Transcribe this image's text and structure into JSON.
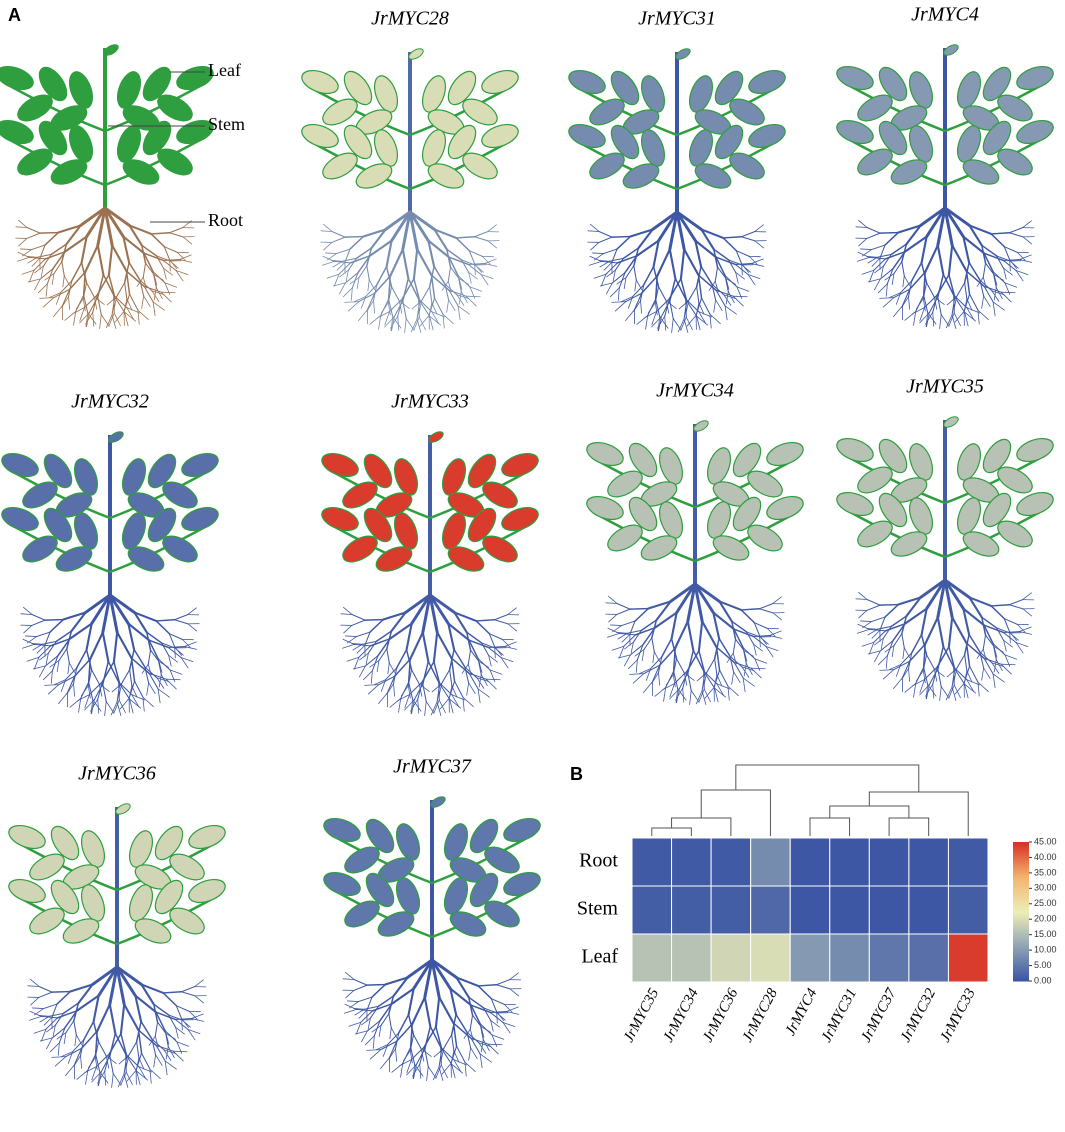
{
  "panel_a": {
    "label": "A",
    "schematic_labels": [
      "Leaf",
      "Stem",
      "Root"
    ],
    "plants": [
      "JrMYC28",
      "JrMYC31",
      "JrMYC4",
      "JrMYC32",
      "JrMYC33",
      "JrMYC34",
      "JrMYC35",
      "JrMYC36",
      "JrMYC37"
    ]
  },
  "chart_data": {
    "type": "heatmap",
    "label": "B",
    "rows": [
      "Root",
      "Stem",
      "Leaf"
    ],
    "categories": [
      "JrMYC35",
      "JrMYC34",
      "JrMYC36",
      "JrMYC28",
      "JrMYC4",
      "JrMYC31",
      "JrMYC37",
      "JrMYC32",
      "JrMYC33"
    ],
    "values": [
      [
        1,
        1,
        1,
        8,
        0.5,
        0.5,
        0.5,
        0.5,
        1
      ],
      [
        1.5,
        1.5,
        1.5,
        3,
        0.5,
        0.5,
        0.5,
        0.5,
        1.5
      ],
      [
        16,
        16,
        19,
        20,
        10,
        8,
        5,
        4,
        44
      ]
    ],
    "colormap": [
      "#3953a4",
      "#8fa3b4",
      "#eeedb5",
      "#f3b46e",
      "#d73027"
    ],
    "zlim": [
      0,
      45
    ],
    "zticks": [
      {
        "value": 0,
        "label": "0.00"
      },
      {
        "value": 5,
        "label": "5.00"
      },
      {
        "value": 10,
        "label": "10.00"
      },
      {
        "value": 15,
        "label": "15.00"
      },
      {
        "value": 20,
        "label": "20.00"
      },
      {
        "value": 25,
        "label": "25.00"
      },
      {
        "value": 30,
        "label": "30.00"
      },
      {
        "value": 35,
        "label": "35.00"
      },
      {
        "value": 40,
        "label": "40.00"
      },
      {
        "value": 45,
        "label": "45.00"
      }
    ]
  }
}
